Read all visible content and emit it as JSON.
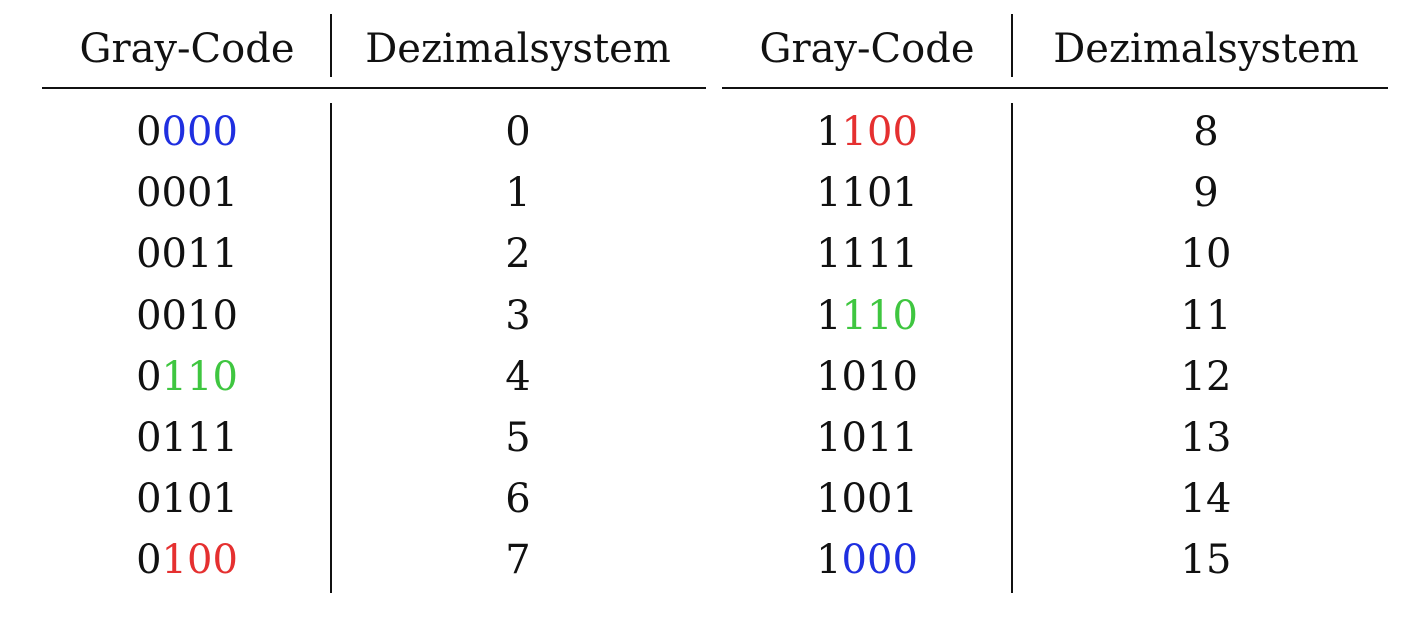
{
  "headers": {
    "left": {
      "gray": "Gray-Code",
      "dec": "Dezimalsystem"
    },
    "right": {
      "gray": "Gray-Code",
      "dec": "Dezimalsystem"
    }
  },
  "colors": {
    "blue": "#1f2fe0",
    "red": "#e53030",
    "green": "#3fc640",
    "text": "#111111"
  },
  "rows_left": [
    {
      "gray_prefix": "0",
      "gray_rest": "000",
      "highlight": "blue",
      "dec": "0"
    },
    {
      "gray_prefix": "",
      "gray_rest": "0001",
      "highlight": "",
      "dec": "1"
    },
    {
      "gray_prefix": "",
      "gray_rest": "0011",
      "highlight": "",
      "dec": "2"
    },
    {
      "gray_prefix": "",
      "gray_rest": "0010",
      "highlight": "",
      "dec": "3"
    },
    {
      "gray_prefix": "0",
      "gray_rest": "110",
      "highlight": "green",
      "dec": "4"
    },
    {
      "gray_prefix": "",
      "gray_rest": "0111",
      "highlight": "",
      "dec": "5"
    },
    {
      "gray_prefix": "",
      "gray_rest": "0101",
      "highlight": "",
      "dec": "6"
    },
    {
      "gray_prefix": "0",
      "gray_rest": "100",
      "highlight": "red",
      "dec": "7"
    }
  ],
  "rows_right": [
    {
      "gray_prefix": "1",
      "gray_rest": "100",
      "highlight": "red",
      "dec": "8"
    },
    {
      "gray_prefix": "",
      "gray_rest": "1101",
      "highlight": "",
      "dec": "9"
    },
    {
      "gray_prefix": "",
      "gray_rest": "1111",
      "highlight": "",
      "dec": "10"
    },
    {
      "gray_prefix": "1",
      "gray_rest": "110",
      "highlight": "green",
      "dec": "11"
    },
    {
      "gray_prefix": "",
      "gray_rest": "1010",
      "highlight": "",
      "dec": "12"
    },
    {
      "gray_prefix": "",
      "gray_rest": "1011",
      "highlight": "",
      "dec": "13"
    },
    {
      "gray_prefix": "",
      "gray_rest": "1001",
      "highlight": "",
      "dec": "14"
    },
    {
      "gray_prefix": "1",
      "gray_rest": "000",
      "highlight": "blue",
      "dec": "15"
    }
  ]
}
